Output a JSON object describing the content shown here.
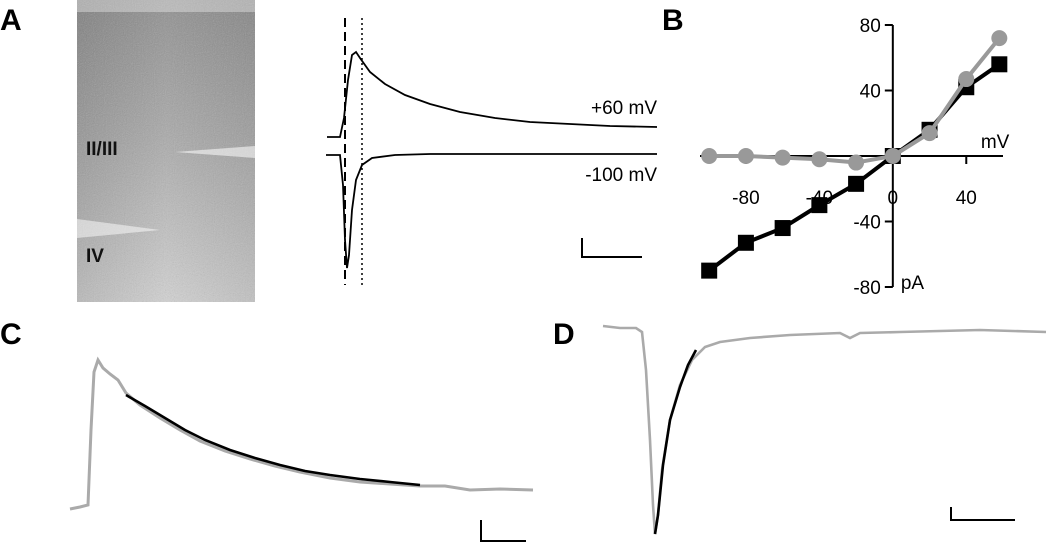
{
  "panels": {
    "a": {
      "letter": "A",
      "slice_labels": [
        "II/III",
        "IV"
      ]
    },
    "b": {
      "letter": "B"
    },
    "c": {
      "letter": "C"
    },
    "d": {
      "letter": "D"
    }
  },
  "chart_data": [
    {
      "type": "line",
      "panel": "A",
      "series": [
        {
          "name": "+60 mV",
          "kind": "outward",
          "color": "#000000"
        },
        {
          "name": "-100 mV",
          "kind": "inward",
          "color": "#000000"
        }
      ],
      "markers": [
        "dashed",
        "dotted"
      ],
      "scale_bar": true
    },
    {
      "type": "line",
      "panel": "B",
      "xlabel": "mV",
      "ylabel": "pA",
      "xlim": [
        -105,
        60
      ],
      "ylim": [
        -80,
        80
      ],
      "xticks": [
        -80,
        -40,
        0,
        40
      ],
      "yticks": [
        80,
        40,
        -40,
        -80
      ],
      "series": [
        {
          "name": "black squares",
          "marker": "square",
          "color": "#000000",
          "x": [
            -100,
            -80,
            -60,
            -40,
            -20,
            0,
            20,
            40,
            58
          ],
          "y": [
            -70,
            -53,
            -44,
            -30,
            -17,
            0,
            16,
            42,
            56
          ]
        },
        {
          "name": "gray circles",
          "marker": "circle",
          "color": "#999999",
          "x": [
            -100,
            -80,
            -60,
            -40,
            -20,
            0,
            20,
            40,
            58
          ],
          "y": [
            0,
            0,
            -1,
            -2,
            -4,
            0,
            14,
            47,
            72
          ]
        }
      ]
    },
    {
      "type": "line",
      "panel": "C",
      "series": [
        {
          "name": "trace",
          "color": "#aaaaaa"
        },
        {
          "name": "fit",
          "color": "#000000"
        }
      ],
      "scale_bar": true
    },
    {
      "type": "line",
      "panel": "D",
      "series": [
        {
          "name": "trace",
          "color": "#aaaaaa"
        },
        {
          "name": "fit",
          "color": "#000000"
        }
      ],
      "scale_bar": true
    }
  ]
}
